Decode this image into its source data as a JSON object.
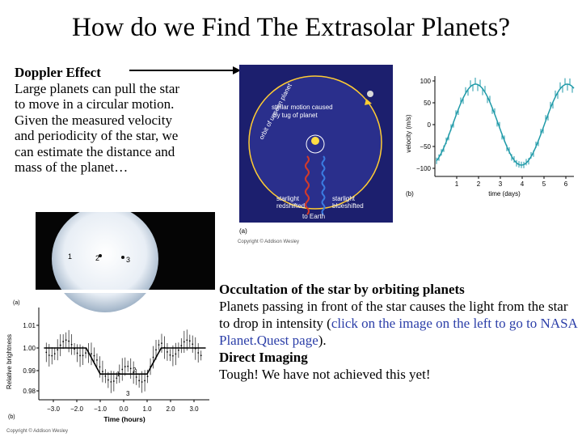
{
  "slide": {
    "title": "How do we Find The Extrasolar Planets?",
    "doppler": {
      "heading": "Doppler Effect",
      "lines": [
        "Large planets can pull the  star",
        "to move in a circular motion.",
        "Given the measured velocity",
        "and periodicity of the star, we",
        "can estimate the distance and",
        "mass of the planet…"
      ]
    },
    "occultation": {
      "heading": "Occultation of the star by orbiting planets",
      "text_before": "Planets passing in front of the star causes the light from the star to drop in intensity (",
      "link_text": "click on the image on the left to go to NASA Planet.Quest page",
      "text_after": ")."
    },
    "direct": {
      "heading": "Direct Imaging",
      "text": "Tough! We have not achieved this yet!"
    }
  },
  "orbit_figure": {
    "orbit_label": "orbit of unseen planet",
    "motion_label_1": "stellar motion caused",
    "motion_label_2": "by tug of planet",
    "red_label_1": "starlight",
    "red_label_2": "redshifted",
    "blue_label_1": "starlight",
    "blue_label_2": "blueshifted",
    "earth_label": "to Earth",
    "panel_label": "(a)",
    "copyright": "Copyright © Addison Wesley"
  },
  "velocity_chart": {
    "panel_label": "(b)",
    "ylabel": "velocity (m/s)",
    "xlabel": "time (days)",
    "yticks": [
      "100",
      "50",
      "0",
      "−50",
      "−100"
    ],
    "xticks": [
      "1",
      "2",
      "3",
      "4",
      "5",
      "6"
    ]
  },
  "transit_figure": {
    "image_panel_label": "(a)",
    "planet_positions": [
      "1",
      "2",
      "3"
    ],
    "chart_panel_label": "(b)",
    "ylabel": "Relative brightness",
    "xlabel": "Time (hours)",
    "yticks": [
      "1.01",
      "1.00",
      "0.99",
      "0.98"
    ],
    "xticks": [
      "−3.0",
      "−2.0",
      "−1.0",
      "0.0",
      "1.0",
      "2.0",
      "3.0"
    ],
    "curve_labels": [
      "1",
      "2",
      "3"
    ],
    "copyright": "Copyright © Addison Wesley"
  },
  "colors": {
    "orbit_bg": "#1c1f6e",
    "orbit_line": "#ffcc33",
    "red_wave": "#d23a2a",
    "blue_wave": "#3a7be0",
    "velocity_points": "#1f9aa8",
    "link": "#2b3ea8"
  }
}
